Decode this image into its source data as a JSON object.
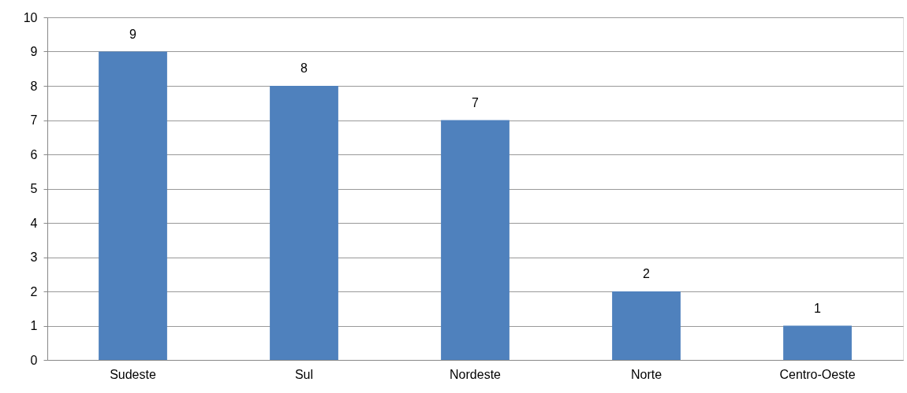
{
  "chart_data": {
    "type": "bar",
    "categories": [
      "Sudeste",
      "Sul",
      "Nordeste",
      "Norte",
      "Centro-Oeste"
    ],
    "values": [
      9,
      8,
      7,
      2,
      1
    ],
    "color": "#4f81bd",
    "ylim": [
      0,
      10
    ],
    "yticks": [
      0,
      1,
      2,
      3,
      4,
      5,
      6,
      7,
      8,
      9,
      10
    ],
    "grid": "y",
    "data_labels": true
  }
}
